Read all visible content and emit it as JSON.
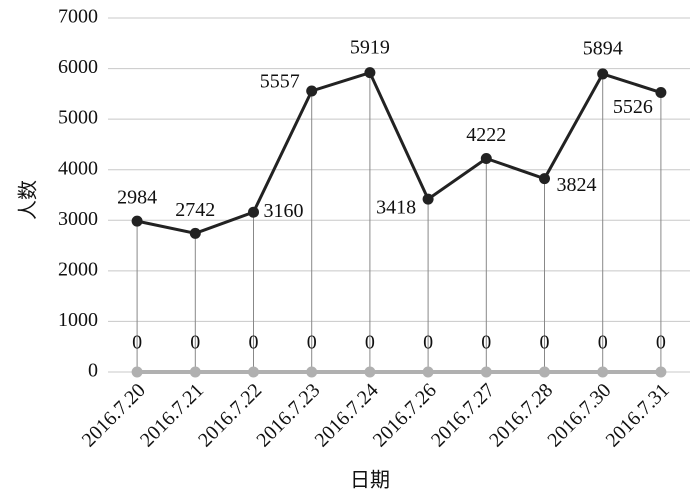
{
  "chart_data": {
    "type": "line",
    "x_label": "日期",
    "y_label": "人数",
    "categories": [
      "2016.7.20",
      "2016.7.21",
      "2016.7.22",
      "2016.7.23",
      "2016.7.24",
      "2016.7.26",
      "2016.7.27",
      "2016.7.28",
      "2016.7.30",
      "2016.7.31"
    ],
    "series": [
      {
        "color": "#222222",
        "values": [
          2984,
          2742,
          3160,
          5557,
          5919,
          3418,
          4222,
          3824,
          5894,
          5526
        ]
      },
      {
        "color": "#b0b0b0",
        "values": [
          0,
          0,
          0,
          0,
          0,
          0,
          0,
          0,
          0,
          0
        ]
      }
    ],
    "ylim": [
      0,
      7000
    ],
    "yticks": [
      0,
      1000,
      2000,
      3000,
      4000,
      5000,
      6000,
      7000
    ],
    "grid": true
  }
}
